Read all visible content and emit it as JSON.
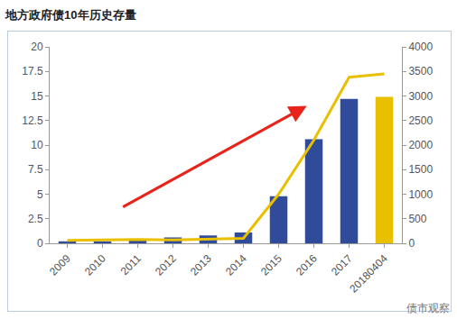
{
  "chart_data": {
    "type": "bar",
    "title": "地方政府债10年历史存量",
    "categories": [
      "2009",
      "2010",
      "2011",
      "2012",
      "2013",
      "2014",
      "2015",
      "2016",
      "2017",
      "20180404"
    ],
    "series": [
      {
        "type": "bar",
        "colors": [
          "#2f4b9a",
          "#2f4b9a",
          "#2f4b9a",
          "#2f4b9a",
          "#2f4b9a",
          "#2f4b9a",
          "#2f4b9a",
          "#2f4b9a",
          "#2f4b9a",
          "#e8c000"
        ],
        "values": [
          0.2,
          0.2,
          0.4,
          0.6,
          0.8,
          1.1,
          4.8,
          10.6,
          14.7,
          14.9
        ]
      },
      {
        "type": "line",
        "color": "#e8c000",
        "axis": "y2",
        "values": [
          60,
          70,
          80,
          70,
          80,
          100,
          1000,
          2100,
          3380,
          3450
        ]
      }
    ],
    "ylim": [
      0,
      20
    ],
    "yticks": [
      0,
      2.5,
      5,
      7.5,
      10,
      12.5,
      15,
      17.5,
      20
    ],
    "y2lim": [
      0,
      4000
    ],
    "y2ticks": [
      0,
      500,
      1000,
      1500,
      2000,
      2500,
      3000,
      3500,
      4000
    ],
    "grid": false,
    "annotations": [
      "债市观察"
    ]
  }
}
